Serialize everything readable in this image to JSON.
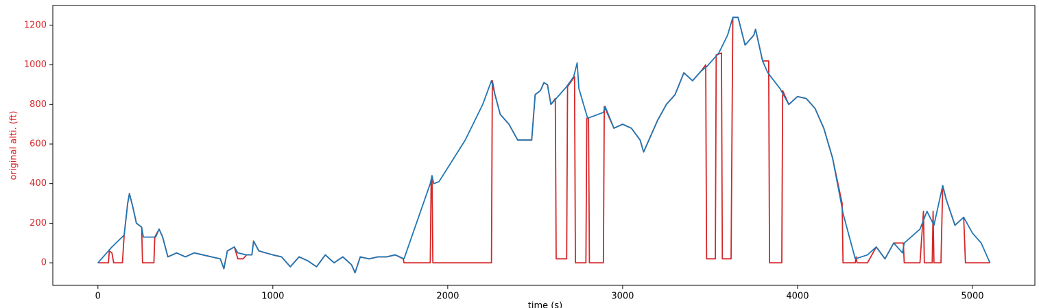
{
  "chart_data": {
    "type": "line",
    "xlabel": "time (s)",
    "ylabel": "original alti. (ft)",
    "ylabel_color": "#d62728",
    "xlim": [
      -258,
      5357
    ],
    "ylim": [
      -114,
      1300
    ],
    "xticks": [
      0,
      1000,
      2000,
      3000,
      4000,
      5000
    ],
    "yticks": [
      0,
      200,
      400,
      600,
      800,
      1000,
      1200
    ],
    "series": [
      {
        "color": "#d62728",
        "x": [
          0,
          60,
          65,
          80,
          90,
          140,
          150,
          170,
          180,
          200,
          220,
          250,
          255,
          320,
          325,
          350,
          370,
          400,
          450,
          500,
          550,
          600,
          650,
          700,
          720,
          740,
          780,
          800,
          830,
          850,
          880,
          890,
          920,
          1000,
          1050,
          1100,
          1150,
          1200,
          1250,
          1300,
          1350,
          1400,
          1450,
          1470,
          1500,
          1550,
          1600,
          1650,
          1700,
          1745,
          1750,
          1900,
          1905,
          1910,
          1915,
          2250,
          2255,
          2270,
          2300,
          2350,
          2400,
          2450,
          2480,
          2500,
          2530,
          2550,
          2570,
          2590,
          2615,
          2620,
          2680,
          2685,
          2725,
          2730,
          2790,
          2795,
          2805,
          2810,
          2890,
          2895,
          2950,
          3000,
          3050,
          3100,
          3120,
          3150,
          3200,
          3250,
          3300,
          3350,
          3400,
          3450,
          3475,
          3480,
          3530,
          3535,
          3565,
          3570,
          3620,
          3630,
          3660,
          3700,
          3750,
          3760,
          3780,
          3800,
          3835,
          3840,
          3910,
          3915,
          3950,
          4000,
          4050,
          4100,
          4150,
          4200,
          4255,
          4260,
          4330,
          4335,
          4340,
          4400,
          4450,
          4500,
          4550,
          4605,
          4610,
          4700,
          4720,
          4725,
          4770,
          4775,
          4780,
          4820,
          4830,
          4850,
          4900,
          4950,
          4960,
          5100
        ],
        "values": [
          0,
          0,
          60,
          50,
          0,
          0,
          140,
          300,
          350,
          280,
          200,
          180,
          0,
          0,
          130,
          170,
          130,
          30,
          50,
          30,
          50,
          40,
          30,
          20,
          -30,
          60,
          80,
          20,
          20,
          40,
          40,
          110,
          60,
          40,
          30,
          -20,
          30,
          10,
          -20,
          40,
          0,
          30,
          -10,
          -50,
          30,
          20,
          30,
          30,
          40,
          20,
          0,
          0,
          400,
          440,
          0,
          0,
          920,
          850,
          750,
          700,
          620,
          620,
          620,
          850,
          870,
          910,
          900,
          800,
          830,
          20,
          20,
          890,
          940,
          0,
          0,
          730,
          730,
          0,
          0,
          790,
          680,
          700,
          680,
          620,
          560,
          620,
          720,
          800,
          850,
          960,
          920,
          970,
          1000,
          20,
          20,
          1050,
          1060,
          20,
          20,
          1240,
          1240,
          1100,
          1150,
          1180,
          1100,
          1020,
          1020,
          0,
          0,
          870,
          800,
          840,
          830,
          780,
          680,
          530,
          300,
          0,
          0,
          30,
          0,
          0,
          80,
          20,
          100,
          100,
          0,
          0,
          260,
          0,
          0,
          260,
          0,
          0,
          390,
          320,
          190,
          230,
          0,
          0
        ]
      },
      {
        "color": "#1f77b4",
        "x": [
          0,
          60,
          80,
          150,
          170,
          180,
          200,
          220,
          250,
          260,
          330,
          350,
          370,
          400,
          450,
          500,
          550,
          600,
          650,
          700,
          720,
          740,
          780,
          800,
          850,
          880,
          890,
          920,
          1000,
          1050,
          1100,
          1150,
          1200,
          1250,
          1300,
          1350,
          1400,
          1450,
          1470,
          1500,
          1550,
          1600,
          1650,
          1700,
          1750,
          1900,
          1910,
          1920,
          1950,
          2000,
          2100,
          2200,
          2250,
          2270,
          2300,
          2350,
          2400,
          2450,
          2480,
          2500,
          2530,
          2550,
          2570,
          2590,
          2620,
          2680,
          2720,
          2740,
          2750,
          2800,
          2890,
          2900,
          2950,
          3000,
          3050,
          3100,
          3120,
          3150,
          3200,
          3250,
          3300,
          3350,
          3400,
          3450,
          3480,
          3550,
          3600,
          3630,
          3660,
          3700,
          3750,
          3760,
          3780,
          3800,
          3830,
          3900,
          3950,
          4000,
          4050,
          4100,
          4150,
          4200,
          4250,
          4260,
          4330,
          4400,
          4450,
          4500,
          4550,
          4600,
          4610,
          4700,
          4740,
          4780,
          4830,
          4850,
          4900,
          4950,
          5000,
          5050,
          5100
        ],
        "values": [
          0,
          60,
          80,
          140,
          300,
          350,
          280,
          200,
          180,
          130,
          130,
          170,
          130,
          30,
          50,
          30,
          50,
          40,
          30,
          20,
          -30,
          60,
          80,
          50,
          40,
          40,
          110,
          60,
          40,
          30,
          -20,
          30,
          10,
          -20,
          40,
          0,
          30,
          -10,
          -50,
          30,
          20,
          30,
          30,
          40,
          20,
          400,
          440,
          400,
          410,
          480,
          620,
          800,
          920,
          850,
          750,
          700,
          620,
          620,
          620,
          850,
          870,
          910,
          900,
          800,
          830,
          890,
          940,
          1010,
          880,
          730,
          760,
          790,
          680,
          700,
          680,
          620,
          560,
          620,
          720,
          800,
          850,
          960,
          920,
          970,
          990,
          1060,
          1150,
          1240,
          1240,
          1100,
          1150,
          1180,
          1100,
          1020,
          960,
          880,
          800,
          840,
          830,
          780,
          680,
          530,
          300,
          250,
          20,
          40,
          80,
          20,
          100,
          50,
          100,
          170,
          260,
          190,
          390,
          320,
          190,
          230,
          150,
          100,
          0
        ]
      }
    ]
  }
}
